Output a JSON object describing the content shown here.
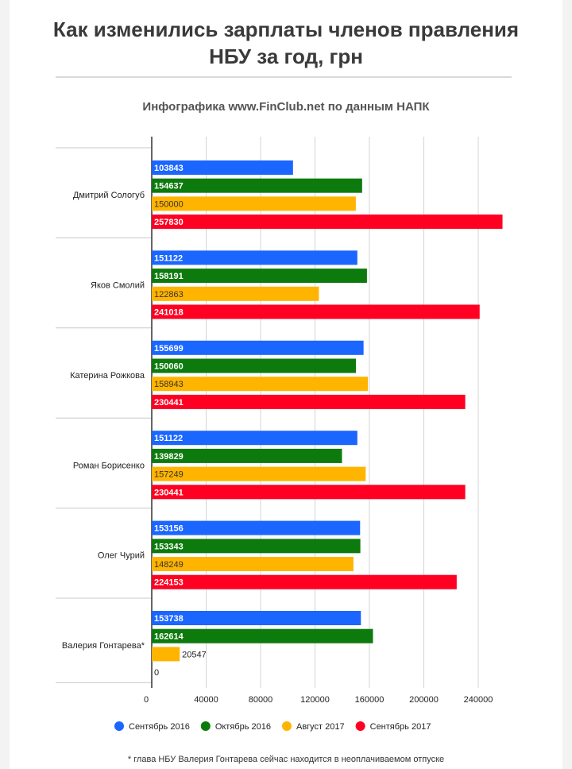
{
  "title_line1": "Как изменились зарплаты членов правления",
  "title_line2": "НБУ за год, грн",
  "subtitle": "Инфографика www.FinClub.net по данным НАПК",
  "footnote": "* глава НБУ Валерия Гонтарева сейчас находится в неоплачиваемом отпуске",
  "colors": {
    "sep2016": "#1a66ff",
    "oct2016": "#0d7a0d",
    "aug2017": "#ffb400",
    "sep2017": "#ff0022"
  },
  "chart_data": {
    "type": "bar",
    "orientation": "horizontal",
    "categories": [
      "Дмитрий Сологуб",
      "Яков Смолий",
      "Катерина Рожкова",
      "Роман Борисенко",
      "Олег Чурий",
      "Валерия Гонтарева*"
    ],
    "series": [
      {
        "name": "Сентябрь 2016",
        "values": [
          103843,
          151122,
          155699,
          151122,
          153156,
          153738
        ]
      },
      {
        "name": "Октябрь 2016",
        "values": [
          154637,
          158191,
          150060,
          139829,
          153343,
          162614
        ]
      },
      {
        "name": "Август 2017",
        "values": [
          150000,
          122863,
          158943,
          157249,
          148249,
          20547
        ]
      },
      {
        "name": "Сентябрь 2017",
        "values": [
          257830,
          241018,
          230441,
          230441,
          224153,
          0
        ]
      }
    ],
    "xticks": [
      0,
      40000,
      80000,
      120000,
      160000,
      200000,
      240000
    ],
    "xlim": [
      0,
      280000
    ],
    "grid": true,
    "legend_position": "bottom"
  }
}
